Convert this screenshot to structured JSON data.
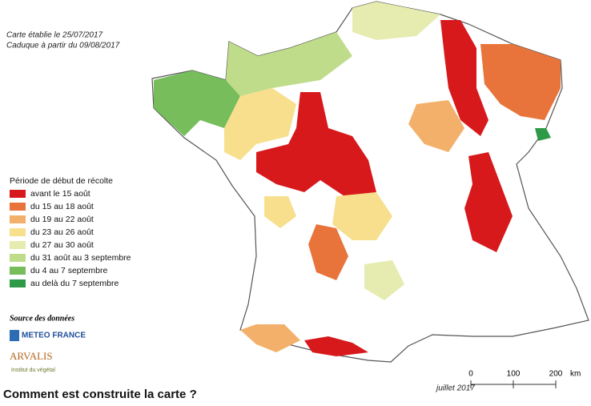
{
  "header": {
    "lines": [
      "Carte établie le 25/07/2017",
      "Caduque à partir du 09/08/2017"
    ]
  },
  "legend": {
    "title": "Période de début de récolte",
    "items": [
      {
        "label": "avant le 15 août",
        "color": "#d7191c"
      },
      {
        "label": "du 15 au 18 août",
        "color": "#e8743b"
      },
      {
        "label": "du 19 au 22 août",
        "color": "#f3b06a"
      },
      {
        "label": "du 23 au 26 août",
        "color": "#f8df8e"
      },
      {
        "label": "du 27 au 30 août",
        "color": "#e6ebb0"
      },
      {
        "label": "du 31 août au 3 septembre",
        "color": "#bfdc8a"
      },
      {
        "label": "du 4 au 7 septembre",
        "color": "#77bd5c"
      },
      {
        "label": "au delà du 7 septembre",
        "color": "#2e9a47"
      }
    ]
  },
  "sources": {
    "title": "Source des données",
    "logo1": "METEO FRANCE",
    "logo2": "ARVALIS",
    "logo2_sub": "Institut du végétal"
  },
  "scale_bar": {
    "ticks": [
      0,
      100,
      200
    ],
    "unit": "km"
  },
  "map_date": "juillet 2017",
  "heading": "Comment est construite la carte ?"
}
